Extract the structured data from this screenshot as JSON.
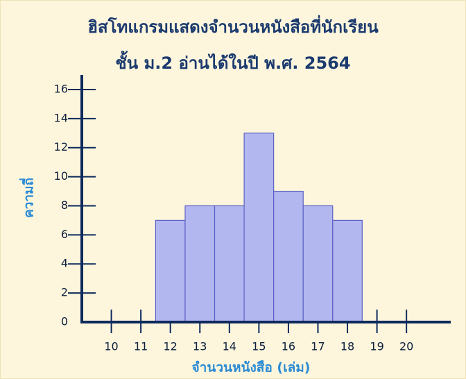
{
  "chart_data": {
    "type": "histogram",
    "title": "ฮิสโทแกรมแสดงจำนวนหนังสือที่นักเรียน",
    "subtitle": "ชั้น ม.2 อ่านได้ในปี พ.ศ. 2564",
    "x_label": "จำนวนหนังสือ (เล่ม)",
    "y_label": "ความถี่",
    "bins": [
      11.5,
      12.5,
      13.5,
      14.5,
      15.5,
      16.5,
      17.5,
      18.5
    ],
    "values": [
      7,
      8,
      8,
      13,
      9,
      8,
      7
    ],
    "color": "#b3b7ef",
    "edge_color": "#5a60c4",
    "xlim": [
      9,
      21.5
    ],
    "xticks": [
      10,
      11,
      12,
      13,
      14,
      15,
      16,
      17,
      18,
      19,
      20
    ],
    "ylim": [
      0,
      17
    ],
    "yticks": [
      0,
      2,
      4,
      6,
      8,
      10,
      12,
      14,
      16
    ]
  }
}
